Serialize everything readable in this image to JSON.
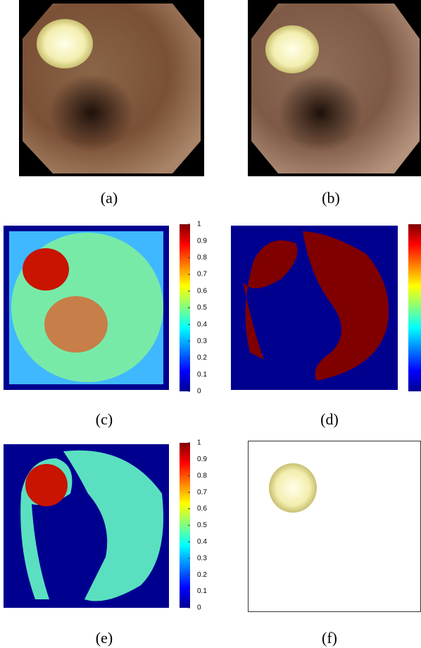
{
  "panels": [
    {
      "label": "(a)"
    },
    {
      "label": "(b)"
    },
    {
      "label": "(c)"
    },
    {
      "label": "(d)"
    },
    {
      "label": "(e)"
    },
    {
      "label": "(f)"
    }
  ],
  "colorbars": [
    {
      "ticks": [
        1,
        0.9,
        0.8,
        0.7,
        0.6,
        0.5,
        0.4,
        0.3,
        0.2,
        0.1,
        0
      ]
    },
    {
      "ticks": [
        1,
        0.9,
        0.8,
        0.7,
        0.6,
        0.5,
        0.4,
        0.3,
        0.2,
        0.1,
        0
      ]
    }
  ]
}
